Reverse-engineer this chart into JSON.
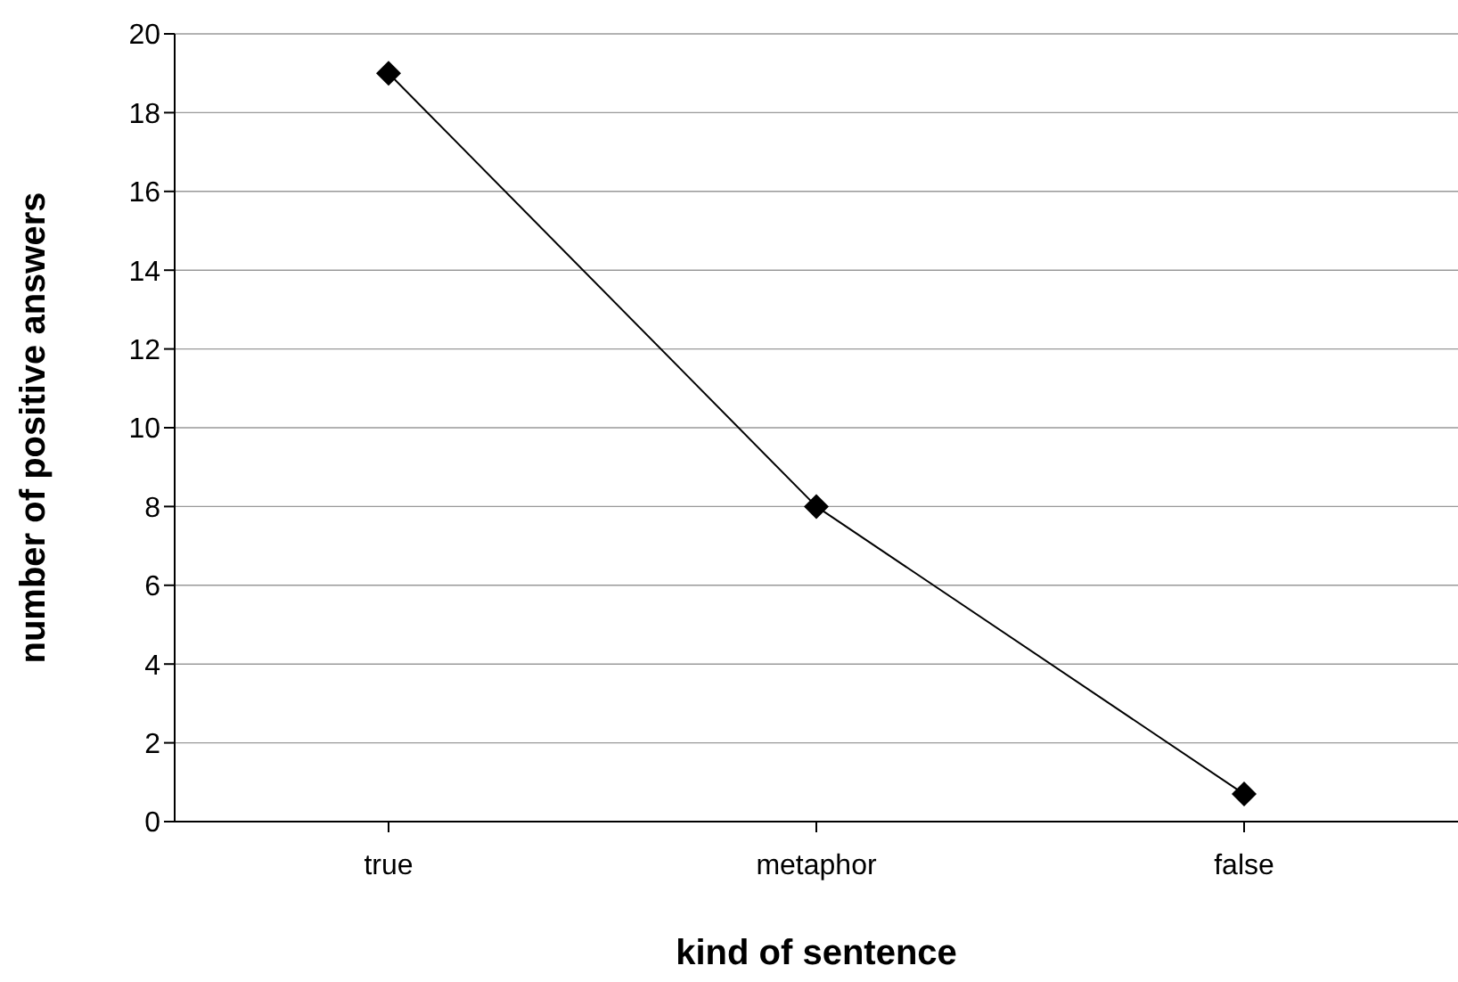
{
  "chart_data": {
    "type": "line",
    "xlabel": "kind of sentence",
    "ylabel": "number of positive answers",
    "categories": [
      "true",
      "metaphor",
      "false"
    ],
    "series": [
      {
        "color": "#000000",
        "values": [
          19,
          8,
          0.7
        ]
      }
    ],
    "ylim": [
      0,
      20
    ],
    "yticks": [
      0,
      2,
      4,
      6,
      8,
      10,
      12,
      14,
      16,
      18,
      20
    ],
    "grid": "y",
    "legend": false,
    "marker": "diamond",
    "line_style": "solid"
  }
}
